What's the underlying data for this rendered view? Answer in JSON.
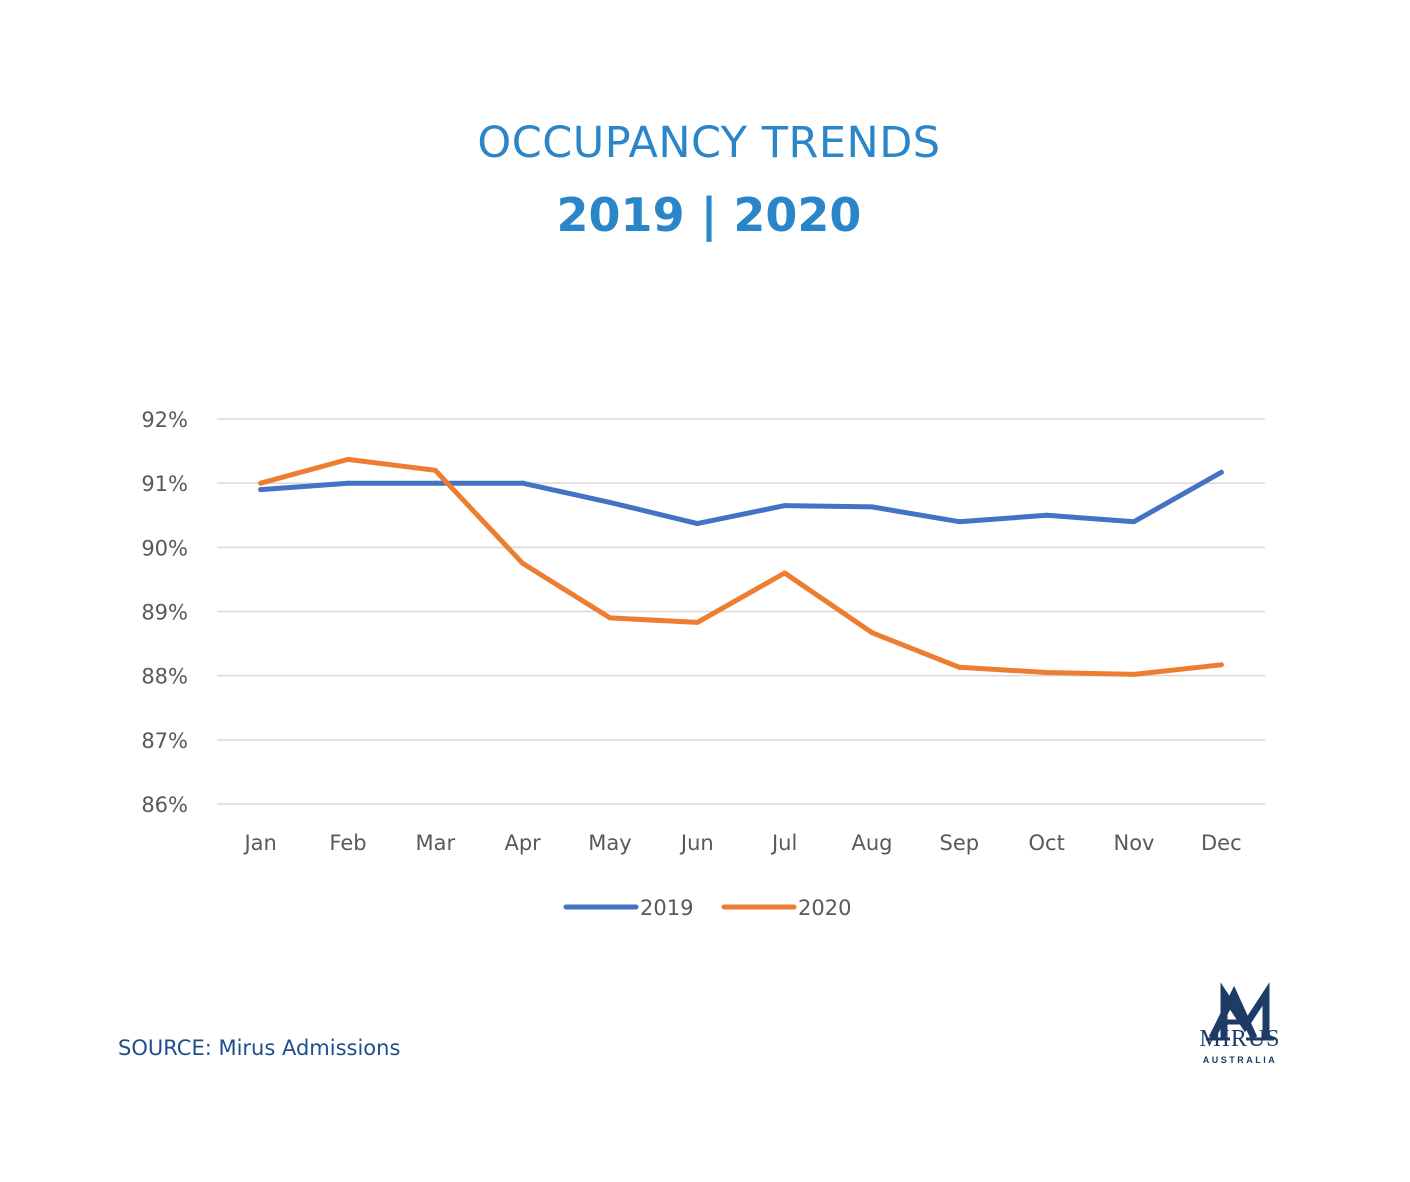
{
  "header": {
    "title": "OCCUPANCY TRENDS",
    "subtitle": "2019 | 2020"
  },
  "footer": {
    "source": "SOURCE: Mirus Admissions"
  },
  "logo": {
    "name": "MIRUS",
    "sub": "AUSTRALIA",
    "icon": "ma-monogram-icon"
  },
  "colors": {
    "title": "#2b86c9",
    "series_2019": "#4472c4",
    "series_2020": "#ed7d31",
    "grid": "#d9d9d9",
    "tick": "#595959",
    "logo": "#1e3a66"
  },
  "chart_data": {
    "type": "line",
    "categories": [
      "Jan",
      "Feb",
      "Mar",
      "Apr",
      "May",
      "Jun",
      "Jul",
      "Aug",
      "Sep",
      "Oct",
      "Nov",
      "Dec"
    ],
    "series": [
      {
        "name": "2019",
        "color": "#4472c4",
        "values": [
          90.9,
          91.0,
          91.0,
          91.0,
          90.7,
          90.37,
          90.65,
          90.63,
          90.4,
          90.5,
          90.4,
          91.17
        ]
      },
      {
        "name": "2020",
        "color": "#ed7d31",
        "values": [
          91.0,
          91.37,
          91.2,
          89.75,
          88.9,
          88.83,
          89.6,
          88.67,
          88.13,
          88.05,
          88.02,
          88.17
        ]
      }
    ],
    "y_ticks": [
      "92%",
      "91%",
      "90%",
      "89%",
      "88%",
      "87%",
      "86%"
    ],
    "ylim": [
      86,
      92
    ],
    "grid": true,
    "legend": "bottom"
  }
}
